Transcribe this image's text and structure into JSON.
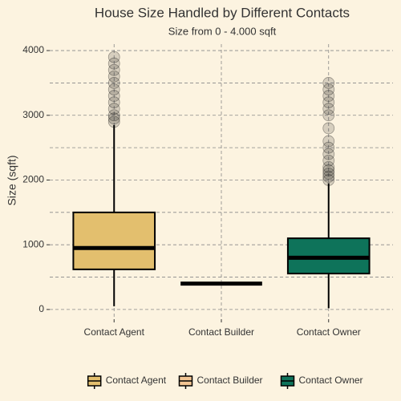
{
  "chart_data": {
    "type": "box",
    "title": "House Size Handled by Different Contacts",
    "subtitle": "Size from 0 - 4.000 sqft",
    "y_label": "Size (sqft)",
    "categories": [
      "Contact Agent",
      "Contact Builder",
      "Contact Owner"
    ],
    "series": [
      {
        "name": "Contact Agent",
        "color": "#e3bf6e",
        "whisker_low": 50,
        "q1": 620,
        "median": 950,
        "q3": 1500,
        "whisker_high": 2850,
        "outliers": [
          2900,
          2950,
          3000,
          3100,
          3200,
          3300,
          3400,
          3500,
          3600,
          3700,
          3800,
          3900
        ]
      },
      {
        "name": "Contact Builder",
        "color": "#f2c593",
        "whisker_low": 400,
        "q1": 400,
        "median": 400,
        "q3": 400,
        "whisker_high": 400
      },
      {
        "name": "Contact Owner",
        "color": "#0e735a",
        "whisker_low": 20,
        "q1": 555,
        "median": 800,
        "q3": 1100,
        "whisker_high": 1950,
        "outliers": [
          2000,
          2050,
          2100,
          2150,
          2200,
          2300,
          2400,
          2500,
          2600,
          2800,
          3000,
          3100,
          3200,
          3300,
          3400,
          3500
        ]
      }
    ],
    "ylim": [
      -150,
      4100
    ],
    "yticks": [
      0,
      1000,
      2000,
      3000,
      4000
    ],
    "y_minor_grid": [
      500,
      1500,
      2500,
      3500
    ],
    "grid": true
  }
}
